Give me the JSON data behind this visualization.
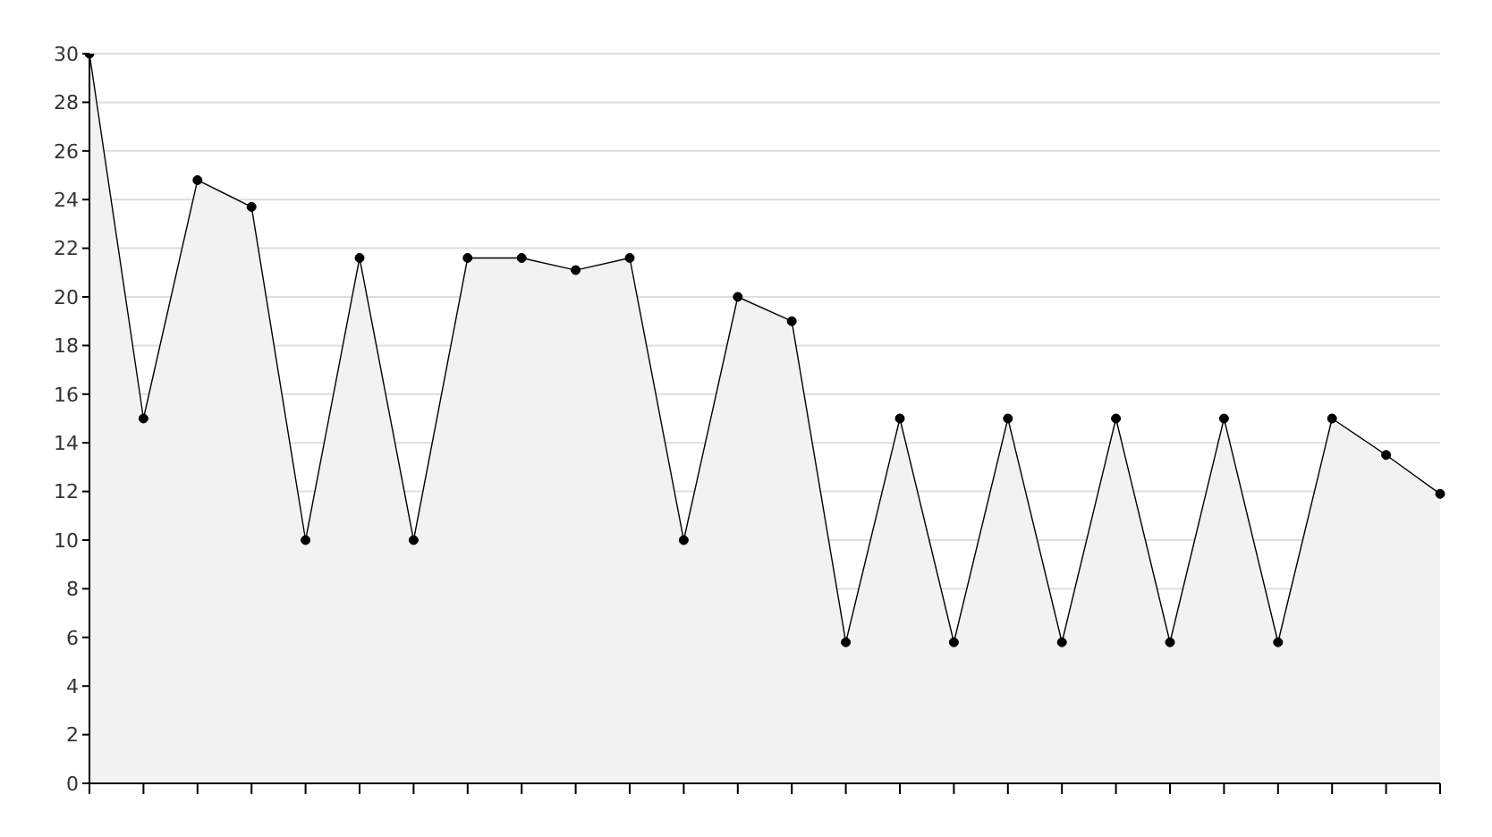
{
  "chart_data": {
    "type": "area",
    "categories": [
      null,
      null,
      null,
      null,
      null,
      null,
      null,
      null,
      null,
      null,
      null,
      null,
      null,
      null,
      null,
      null,
      null,
      null,
      null,
      null,
      null,
      null,
      null,
      null,
      null,
      null
    ],
    "series": [
      {
        "color": "#000000",
        "values": [
          30,
          15,
          24.8,
          23.7,
          10,
          21.6,
          10,
          21.6,
          21.6,
          21.1,
          21.6,
          10,
          20,
          19,
          5.8,
          15,
          5.8,
          15,
          5.8,
          15,
          5.8,
          15,
          5.8,
          15,
          13.5,
          11.9
        ]
      }
    ],
    "ylim": [
      0,
      30
    ],
    "yticks": [
      0,
      2,
      4,
      6,
      8,
      10,
      12,
      14,
      16,
      18,
      20,
      22,
      24,
      26,
      28,
      30
    ],
    "grid": "y",
    "marker": "circle",
    "legend": false
  }
}
